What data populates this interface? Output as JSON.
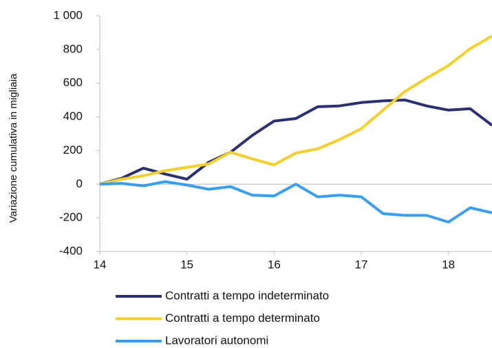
{
  "chart_data": {
    "type": "line",
    "y_label": "Variazione cumulativa  in migliaia",
    "x": [
      14,
      14.25,
      14.5,
      14.75,
      15,
      15.25,
      15.5,
      15.75,
      16,
      16.25,
      16.5,
      16.75,
      17,
      17.25,
      17.5,
      17.75,
      18,
      18.25,
      18.5
    ],
    "series": [
      {
        "name": "Contratti a tempo indeterminato",
        "color": "#2b3073",
        "values": [
          0,
          35,
          95,
          60,
          30,
          130,
          190,
          290,
          375,
          390,
          460,
          465,
          485,
          495,
          500,
          465,
          440,
          448,
          350
        ]
      },
      {
        "name": "Contratti a tempo determinato",
        "color": "#f5cf2a",
        "values": [
          0,
          30,
          50,
          80,
          100,
          120,
          190,
          150,
          115,
          185,
          210,
          265,
          330,
          440,
          550,
          630,
          705,
          805,
          880
        ]
      },
      {
        "name": "Lavoratori autonomi",
        "color": "#3a9ef0",
        "values": [
          0,
          5,
          -10,
          15,
          -5,
          -30,
          -15,
          -65,
          -70,
          0,
          -75,
          -65,
          -75,
          -175,
          -185,
          -185,
          -225,
          -140,
          -170
        ]
      }
    ],
    "xlim": [
      14,
      18.5
    ],
    "xticks": [
      14,
      15,
      16,
      17,
      18
    ],
    "ylim": [
      -400,
      1000
    ],
    "yticks": [
      -400,
      -200,
      0,
      200,
      400,
      600,
      800,
      {
        "value": 1000,
        "label": "1 000"
      }
    ]
  }
}
